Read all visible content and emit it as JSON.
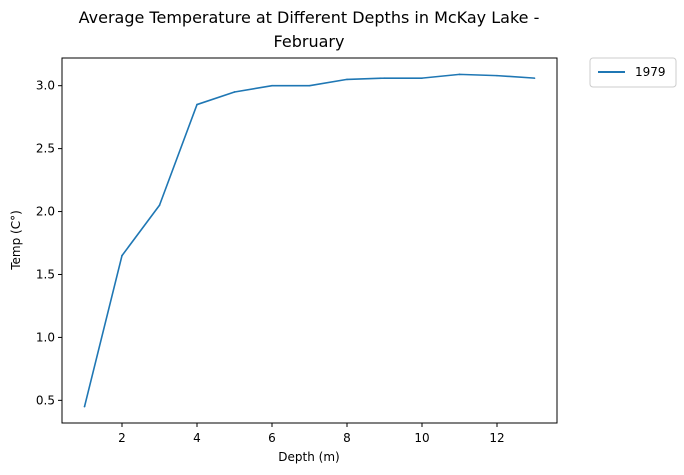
{
  "chart_data": {
    "type": "line",
    "title_lines": [
      "Average Temperature at Different Depths in McKay Lake -",
      "February"
    ],
    "xlabel": "Depth (m)",
    "ylabel": "Temp (C°)",
    "xlim": [
      0.4,
      13.6
    ],
    "ylim": [
      0.32,
      3.22
    ],
    "xticks": [
      2,
      4,
      6,
      8,
      10,
      12
    ],
    "xtick_labels": [
      "2",
      "4",
      "6",
      "8",
      "10",
      "12"
    ],
    "yticks": [
      0.5,
      1.0,
      1.5,
      2.0,
      2.5,
      3.0
    ],
    "ytick_labels": [
      "0.5",
      "1.0",
      "1.5",
      "2.0",
      "2.5",
      "3.0"
    ],
    "grid": false,
    "legend_position": "outside-top-right",
    "series": [
      {
        "name": "1979",
        "color": "#1f77b4",
        "x": [
          1,
          2,
          3,
          4,
          5,
          6,
          7,
          8,
          9,
          10,
          11,
          12,
          13
        ],
        "y": [
          0.45,
          1.65,
          2.05,
          2.85,
          2.95,
          3.0,
          3.0,
          3.05,
          3.06,
          3.06,
          3.09,
          3.08,
          3.06
        ]
      }
    ]
  }
}
